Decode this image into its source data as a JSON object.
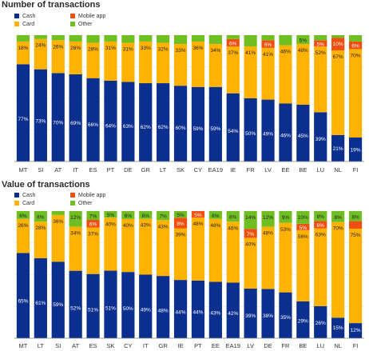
{
  "colors": {
    "cash": "#0b2f8f",
    "card": "#ffb300",
    "mobile": "#ef4f0f",
    "other": "#6fbf23"
  },
  "chart_data": [
    {
      "type": "bar",
      "stacked": true,
      "title": "Number of transactions",
      "legend_position": "top-left",
      "grid": true,
      "ylim": [
        0,
        100
      ],
      "categories": [
        "MT",
        "SI",
        "AT",
        "IT",
        "ES",
        "PT",
        "DE",
        "GR",
        "LT",
        "SK",
        "CY",
        "EA19",
        "IE",
        "FR",
        "LV",
        "EE",
        "BE",
        "LU",
        "NL",
        "FI"
      ],
      "series": [
        {
          "name": "Cash",
          "key": "cash",
          "values": [
            77,
            73,
            70,
            69,
            66,
            64,
            63,
            62,
            62,
            60,
            59,
            59,
            54,
            50,
            49,
            46,
            45,
            39,
            21,
            19
          ],
          "labels": [
            "77%",
            "73%",
            "70%",
            "69%",
            "66%",
            "64%",
            "63%",
            "62%",
            "62%",
            "60%",
            "59%",
            "59%",
            "54%",
            "50%",
            "49%",
            "46%",
            "45%",
            "39%",
            "21%",
            "19%"
          ]
        },
        {
          "name": "Card",
          "key": "card",
          "values": [
            18,
            24,
            26,
            26,
            28,
            31,
            31,
            33,
            32,
            33,
            36,
            34,
            37,
            41,
            41,
            46,
            48,
            52,
            67,
            70
          ],
          "labels": [
            "18%",
            "24%",
            "26%",
            "26%",
            "28%",
            "31%",
            "31%",
            "33%",
            "32%",
            "33%",
            "36%",
            "34%",
            "37%",
            "41%",
            "41%",
            "46%",
            "48%",
            "52%",
            "67%",
            "70%"
          ]
        },
        {
          "name": "Mobile app",
          "key": "mobile",
          "values": [
            0,
            0,
            0,
            0,
            0,
            0,
            0,
            0,
            0,
            0,
            0,
            0,
            6,
            0,
            6,
            0,
            0,
            5,
            10,
            6
          ],
          "labels": [
            "",
            "",
            "",
            "",
            "",
            "",
            "",
            "",
            "",
            "",
            "",
            "",
            "6%",
            "",
            "6%",
            "",
            "",
            "5%",
            "10%",
            "6%"
          ]
        },
        {
          "name": "Other",
          "key": "other",
          "values": [
            5,
            3,
            4,
            5,
            6,
            5,
            6,
            5,
            6,
            7,
            5,
            7,
            3,
            9,
            4,
            8,
            7,
            4,
            2,
            5
          ],
          "labels": [
            "",
            "",
            "",
            "",
            "",
            "",
            "",
            "",
            "",
            "",
            "",
            "",
            "",
            "",
            "",
            "",
            "5%",
            "",
            "",
            ""
          ]
        }
      ]
    },
    {
      "type": "bar",
      "stacked": true,
      "title": "Value of transactions",
      "legend_position": "top-left",
      "grid": true,
      "ylim": [
        0,
        100
      ],
      "categories": [
        "MT",
        "LT",
        "SI",
        "AT",
        "ES",
        "SK",
        "CY",
        "IT",
        "GR",
        "IE",
        "PT",
        "EE",
        "EA19",
        "LV",
        "DE",
        "FR",
        "BE",
        "LU",
        "NL",
        "FI"
      ],
      "series": [
        {
          "name": "Cash",
          "key": "cash",
          "values": [
            65,
            61,
            59,
            52,
            51,
            51,
            50,
            49,
            48,
            44,
            44,
            43,
            42,
            39,
            38,
            35,
            29,
            26,
            15,
            12
          ],
          "labels": [
            "65%",
            "61%",
            "59%",
            "52%",
            "51%",
            "51%",
            "50%",
            "49%",
            "48%",
            "44%",
            "44%",
            "43%",
            "42%",
            "39%",
            "38%",
            "35%",
            "29%",
            "26%",
            "15%",
            "12%"
          ]
        },
        {
          "name": "Card",
          "key": "card",
          "values": [
            26,
            28,
            36,
            34,
            37,
            40,
            40,
            43,
            43,
            39,
            48,
            48,
            46,
            40,
            48,
            53,
            56,
            63,
            70,
            75
          ],
          "labels": [
            "26%",
            "28%",
            "36%",
            "34%",
            "37%",
            "40%",
            "40%",
            "43%",
            "43%",
            "39%",
            "48%",
            "48%",
            "46%",
            "40%",
            "48%",
            "53%",
            "56%",
            "63%",
            "70%",
            "75%"
          ]
        },
        {
          "name": "Mobile app",
          "key": "mobile",
          "values": [
            0,
            0,
            0,
            0,
            6,
            0,
            0,
            0,
            0,
            8,
            5,
            0,
            0,
            7,
            0,
            0,
            5,
            6,
            0,
            6
          ],
          "labels": [
            "",
            "",
            "",
            "",
            "6%",
            "",
            "",
            "",
            "",
            "8%",
            "5%",
            "",
            "",
            "7%",
            "",
            "",
            "5%",
            "6%",
            "",
            ""
          ]
        },
        {
          "name": "Other",
          "key": "other",
          "values": [
            6,
            8,
            3,
            12,
            7,
            5,
            6,
            6,
            7,
            5,
            0,
            6,
            8,
            14,
            12,
            9,
            10,
            8,
            8,
            8
          ],
          "labels": [
            "6%",
            "8%",
            "",
            "12%",
            "7%",
            "5%",
            "6%",
            "6%",
            "7%",
            "5%",
            "",
            "6%",
            "8%",
            "14%",
            "12%",
            "9%",
            "10%",
            "8%",
            "8%",
            "8%"
          ]
        }
      ]
    }
  ]
}
